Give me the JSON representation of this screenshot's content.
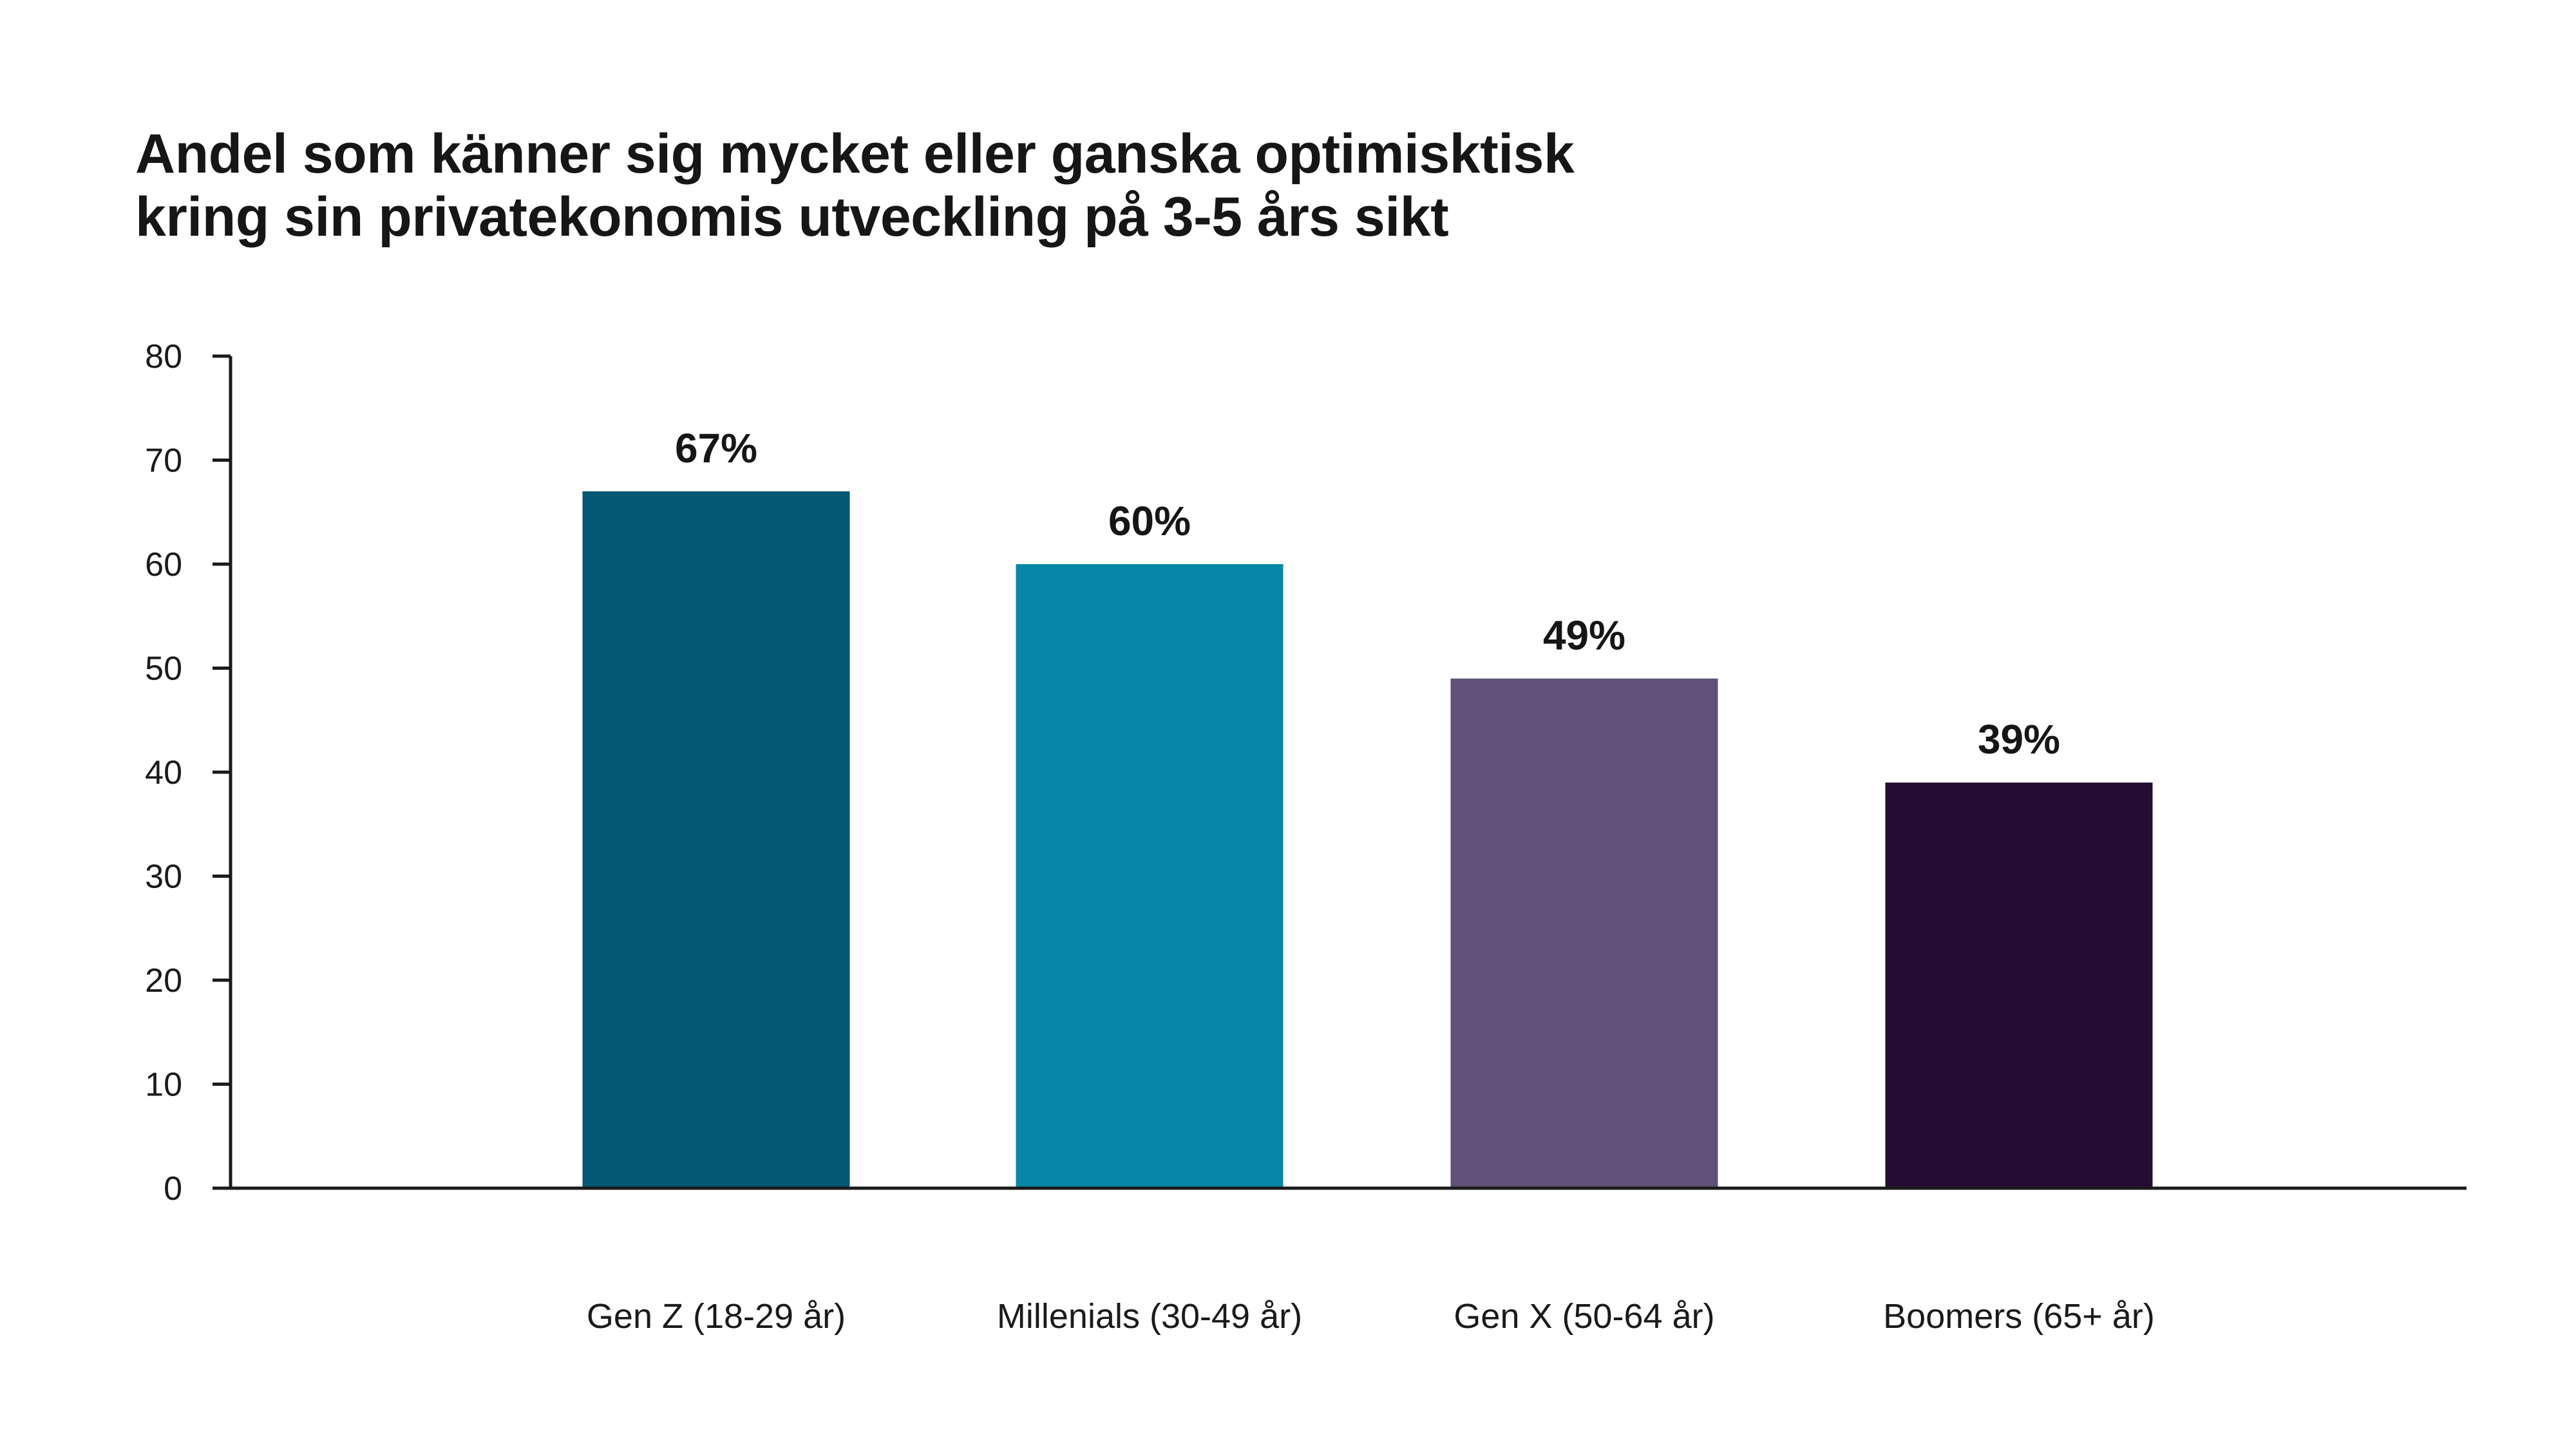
{
  "chart_data": {
    "type": "bar",
    "title_lines": [
      "Andel som känner sig mycket eller ganska optimisktisk",
      "kring sin privatekonomis utveckling på 3-5 års sikt"
    ],
    "categories": [
      "Gen Z (18-29 år)",
      "Millenials (30-49 år)",
      "Gen X (50-64 år)",
      "Boomers (65+ år)"
    ],
    "values": [
      67,
      60,
      49,
      39
    ],
    "value_labels": [
      "67%",
      "60%",
      "49%",
      "39%"
    ],
    "colors": [
      "#065773",
      "#0787a7",
      "#5e5279",
      "#240d34"
    ],
    "ylim": [
      0,
      80
    ],
    "yticks": [
      0,
      10,
      20,
      30,
      40,
      50,
      60,
      70,
      80
    ],
    "xlabel": "",
    "ylabel": "",
    "grid": false,
    "legend": "none"
  }
}
